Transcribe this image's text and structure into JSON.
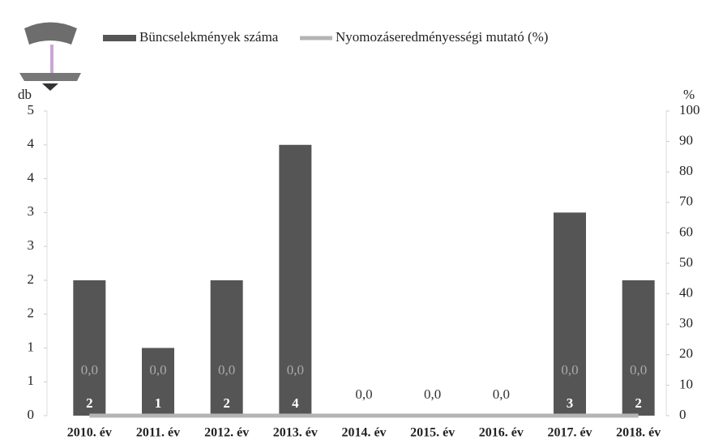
{
  "chart_data": {
    "type": "bar",
    "categories": [
      "2010. év",
      "2011. év",
      "2012. év",
      "2013. év",
      "2014. év",
      "2015. év",
      "2016. év",
      "2017. év",
      "2018. év"
    ],
    "series": [
      {
        "name": "Büncselekmények száma",
        "color": "#555555",
        "type": "bar",
        "values": [
          2,
          1,
          2,
          4,
          null,
          null,
          null,
          3,
          2
        ]
      },
      {
        "name": "Nyomozáseredményességi mutató (%)",
        "color": "#b4b4b4",
        "type": "line",
        "axis": "y2",
        "values": [
          0,
          0,
          0,
          0,
          0,
          0,
          0,
          0,
          0
        ],
        "value_labels": [
          "0,0",
          "0,0",
          "0,0",
          "0,0",
          "0,0",
          "0,0",
          "0,0",
          "0,0",
          "0,0"
        ]
      }
    ],
    "ylabel": "db",
    "y2label": "%",
    "ylim": [
      0,
      4.5
    ],
    "yticks": [
      0,
      {
        "value": 0.5,
        "label": "1"
      },
      1,
      {
        "value": 1.5,
        "label": "2"
      },
      2,
      {
        "value": 2.5,
        "label": "3"
      },
      3,
      {
        "value": 3.5,
        "label": "4"
      },
      4,
      {
        "value": 4.5,
        "label": "5"
      }
    ],
    "y2lim": [
      0,
      100
    ],
    "y2ticks": [
      0,
      10,
      20,
      30,
      40,
      50,
      60,
      70,
      80,
      90,
      100
    ],
    "legend": "top"
  }
}
